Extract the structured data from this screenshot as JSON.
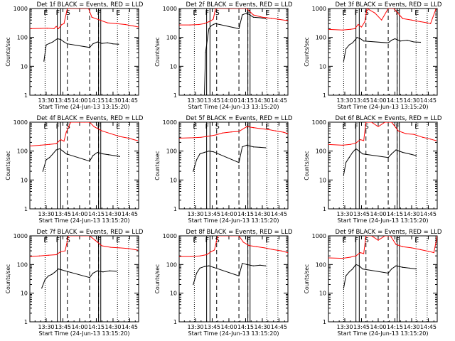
{
  "figure": {
    "ytick_labels": [
      "1",
      "10",
      "100",
      "1000"
    ],
    "xtick_labels": [
      "13:30",
      "13:45",
      "14:00",
      "14:15",
      "14:30",
      "14:45"
    ],
    "colors": {
      "events": "#000000",
      "lld": "#ff0000",
      "frame": "#000000"
    }
  },
  "chart_data": [
    {
      "type": "line",
      "title": "Det 1f BLACK = Events, RED = LLD",
      "xlabel": "Start Time (24-Jun-13 13:15:20)",
      "ylabel": "Counts/sec",
      "ylog": true,
      "ylim": [
        1,
        1000
      ],
      "markers": {
        "solid": [
          "13:40",
          "13:43",
          "14:17",
          "14:19"
        ],
        "dashed": [
          "13:49",
          "14:09",
          "14:17"
        ],
        "dotted": [
          "13:29",
          "14:34",
          "14:44"
        ]
      },
      "flags": [
        "E",
        "F",
        "S",
        "F",
        "E"
      ],
      "series": [
        {
          "name": "Events",
          "x": [
            "13:28",
            "13:30",
            "13:33",
            "13:36",
            "13:38",
            "13:40",
            "13:43",
            "13:46",
            "13:49",
            "14:09",
            "14:12",
            "14:16",
            "14:20",
            "14:25",
            "14:30",
            "14:35"
          ],
          "values": [
            15,
            55,
            62,
            70,
            80,
            90,
            85,
            70,
            60,
            45,
            60,
            70,
            62,
            65,
            60,
            58
          ]
        },
        {
          "name": "LLD",
          "x": [
            "13:15",
            "13:25",
            "13:31",
            "13:37",
            "13:39",
            "13:41",
            "13:44",
            "13:46",
            "13:49",
            "13:52",
            "14:02",
            "14:08",
            "14:11",
            "14:18",
            "14:25",
            "14:33",
            "14:41",
            "14:48",
            "14:53"
          ],
          "values": [
            200,
            205,
            210,
            200,
            240,
            200,
            280,
            300,
            1000,
            1000,
            1000,
            1000,
            500,
            400,
            320,
            300,
            280,
            250,
            230
          ]
        }
      ]
    },
    {
      "type": "line",
      "title": "Det 2f BLACK = Events, RED = LLD",
      "xlabel": "Start Time (24-Jun-13 13:15:20)",
      "ylabel": "Counts/sec",
      "ylog": true,
      "ylim": [
        1,
        1000
      ],
      "markers": {
        "solid": [
          "13:40",
          "13:43",
          "14:17",
          "14:19"
        ],
        "dashed": [
          "13:49",
          "14:09",
          "14:17"
        ],
        "dotted": [
          "13:29",
          "14:34",
          "14:44"
        ]
      },
      "flags": [
        "E",
        "F",
        "S",
        "F",
        "E"
      ],
      "series": [
        {
          "name": "Events",
          "x": [
            "13:38",
            "13:39",
            "13:42",
            "13:44",
            "13:46",
            "13:48",
            "14:09",
            "14:12",
            "14:16",
            "14:22",
            "14:28",
            "14:33"
          ],
          "values": [
            1,
            30,
            200,
            250,
            280,
            300,
            200,
            600,
            700,
            500,
            480,
            450
          ]
        },
        {
          "name": "LLD",
          "x": [
            "13:15",
            "13:25",
            "13:33",
            "13:38",
            "13:42",
            "13:44",
            "13:46",
            "13:48",
            "13:52",
            "14:02",
            "14:10",
            "14:16",
            "14:22",
            "14:30",
            "14:38",
            "14:45",
            "14:53"
          ],
          "values": [
            270,
            270,
            280,
            300,
            350,
            380,
            430,
            1000,
            1000,
            1000,
            1000,
            1000,
            600,
            500,
            460,
            420,
            380
          ]
        }
      ]
    },
    {
      "type": "line",
      "title": "Det 3f BLACK = Events, RED = LLD",
      "xlabel": "Start Time (24-Jun-13 13:15:20)",
      "ylabel": "Counts/sec",
      "ylog": true,
      "ylim": [
        1,
        1000
      ],
      "markers": {
        "solid": [
          "13:40",
          "13:43",
          "14:17",
          "14:19"
        ],
        "dashed": [
          "13:49",
          "14:09",
          "14:17"
        ],
        "dotted": [
          "13:29",
          "14:34",
          "14:44"
        ]
      },
      "flags": [
        "E",
        "F",
        "S",
        "F",
        "E"
      ],
      "series": [
        {
          "name": "Events",
          "x": [
            "13:29",
            "13:31",
            "13:34",
            "13:37",
            "13:39",
            "13:41",
            "13:44",
            "13:47",
            "14:09",
            "14:12",
            "14:15",
            "14:20",
            "14:26",
            "14:32",
            "14:38"
          ],
          "values": [
            15,
            40,
            55,
            65,
            80,
            100,
            90,
            75,
            65,
            80,
            90,
            75,
            80,
            70,
            68
          ]
        },
        {
          "name": "LLD",
          "x": [
            "13:15",
            "13:28",
            "13:35",
            "13:39",
            "13:42",
            "13:45",
            "13:48",
            "13:50",
            "13:57",
            "14:03",
            "14:09",
            "14:14",
            "14:22",
            "14:30",
            "14:38",
            "14:44",
            "14:47",
            "14:52"
          ],
          "values": [
            190,
            180,
            190,
            200,
            280,
            230,
            350,
            1000,
            700,
            400,
            1000,
            1000,
            450,
            400,
            350,
            320,
            300,
            1000
          ]
        }
      ]
    },
    {
      "type": "line",
      "title": "Det 4f BLACK = Events, RED = LLD",
      "xlabel": "Start Time (24-Jun-13 13:15:20)",
      "ylabel": "Counts/sec",
      "ylog": true,
      "ylim": [
        1,
        1000
      ],
      "markers": {
        "solid": [
          "13:40",
          "13:43",
          "14:17",
          "14:19"
        ],
        "dashed": [
          "13:49",
          "14:09",
          "14:17"
        ],
        "dotted": [
          "13:29",
          "14:34",
          "14:44"
        ]
      },
      "flags": [
        "E",
        "F",
        "S",
        "F",
        "E"
      ],
      "series": [
        {
          "name": "Events",
          "x": [
            "13:27",
            "13:30",
            "13:33",
            "13:36",
            "13:39",
            "13:42",
            "13:45",
            "13:48",
            "14:09",
            "14:12",
            "14:16",
            "14:21",
            "14:26",
            "14:31",
            "14:36"
          ],
          "values": [
            20,
            50,
            60,
            80,
            110,
            120,
            100,
            80,
            45,
            70,
            90,
            80,
            75,
            70,
            65
          ]
        },
        {
          "name": "LLD",
          "x": [
            "13:15",
            "13:25",
            "13:33",
            "13:39",
            "13:43",
            "13:46",
            "13:48",
            "13:52",
            "13:58",
            "14:04",
            "14:09",
            "14:13",
            "14:20",
            "14:28",
            "14:36",
            "14:44",
            "14:52"
          ],
          "values": [
            150,
            160,
            170,
            180,
            250,
            220,
            450,
            1000,
            1000,
            1000,
            1000,
            700,
            500,
            400,
            320,
            280,
            230
          ]
        }
      ]
    },
    {
      "type": "line",
      "title": "Det 5f BLACK = Events, RED = LLD",
      "xlabel": "Start Time (24-Jun-13 13:15:20)",
      "ylabel": "Counts/sec",
      "ylog": true,
      "ylim": [
        1,
        1000
      ],
      "markers": {
        "solid": [
          "13:40",
          "13:43",
          "14:17",
          "14:19"
        ],
        "dashed": [
          "13:49",
          "14:09",
          "14:17"
        ],
        "dotted": [
          "13:29",
          "14:34",
          "14:44"
        ]
      },
      "flags": [
        "E",
        "F",
        "S",
        "F",
        "E"
      ],
      "series": [
        {
          "name": "Events",
          "x": [
            "13:28",
            "13:31",
            "13:34",
            "13:38",
            "13:42",
            "13:46",
            "14:09",
            "14:12",
            "14:16",
            "14:22",
            "14:28",
            "14:33"
          ],
          "values": [
            20,
            50,
            80,
            90,
            100,
            95,
            40,
            140,
            160,
            140,
            135,
            130
          ]
        },
        {
          "name": "LLD",
          "x": [
            "13:15",
            "13:28",
            "13:35",
            "13:40",
            "13:44",
            "13:48",
            "13:54",
            "14:02",
            "14:09",
            "14:16",
            "14:22",
            "14:28",
            "14:35",
            "14:42",
            "14:49",
            "14:53"
          ],
          "values": [
            280,
            290,
            300,
            320,
            340,
            360,
            420,
            460,
            480,
            700,
            650,
            600,
            560,
            500,
            450,
            400
          ]
        }
      ]
    },
    {
      "type": "line",
      "title": "Det 6f BLACK = Events, RED = LLD",
      "xlabel": "Start Time (24-Jun-13 13:15:20)",
      "ylabel": "Counts/sec",
      "ylog": true,
      "ylim": [
        1,
        1000
      ],
      "markers": {
        "solid": [
          "13:40",
          "13:43",
          "14:17",
          "14:19"
        ],
        "dashed": [
          "13:49",
          "14:09",
          "14:17"
        ],
        "dotted": [
          "13:29",
          "14:34",
          "14:44"
        ]
      },
      "flags": [
        "E",
        "F",
        "S",
        "F",
        "E"
      ],
      "series": [
        {
          "name": "Events",
          "x": [
            "13:29",
            "13:31",
            "13:34",
            "13:37",
            "13:40",
            "13:43",
            "13:46",
            "14:09",
            "14:12",
            "14:16",
            "14:22",
            "14:28",
            "14:34"
          ],
          "values": [
            15,
            40,
            60,
            90,
            120,
            100,
            80,
            60,
            80,
            110,
            90,
            80,
            70
          ]
        },
        {
          "name": "LLD",
          "x": [
            "13:15",
            "13:28",
            "13:35",
            "13:40",
            "13:44",
            "13:47",
            "13:49",
            "13:54",
            "14:00",
            "14:06",
            "14:12",
            "14:18",
            "14:25",
            "14:32",
            "14:40",
            "14:47",
            "14:52"
          ],
          "values": [
            170,
            160,
            170,
            190,
            250,
            230,
            1000,
            1000,
            700,
            1000,
            1000,
            500,
            400,
            380,
            300,
            260,
            230
          ]
        }
      ]
    },
    {
      "type": "line",
      "title": "Det 7f BLACK = Events, RED = LLD",
      "xlabel": "Start Time (24-Jun-13 13:15:20)",
      "ylabel": "Counts/sec",
      "ylog": true,
      "ylim": [
        1,
        1000
      ],
      "markers": {
        "solid": [
          "13:40",
          "13:43",
          "14:17",
          "14:19"
        ],
        "dashed": [
          "13:49",
          "14:09",
          "14:17"
        ],
        "dotted": [
          "13:29",
          "14:34",
          "14:44"
        ]
      },
      "flags": [
        "E",
        "F",
        "S",
        "F",
        "E"
      ],
      "series": [
        {
          "name": "Events",
          "x": [
            "13:26",
            "13:29",
            "13:32",
            "13:35",
            "13:38",
            "13:41",
            "13:44",
            "13:47",
            "14:09",
            "14:12",
            "14:16",
            "14:21",
            "14:27",
            "14:33"
          ],
          "values": [
            15,
            30,
            40,
            45,
            55,
            70,
            65,
            60,
            35,
            50,
            60,
            55,
            60,
            58
          ]
        },
        {
          "name": "LLD",
          "x": [
            "13:15",
            "13:24",
            "13:32",
            "13:39",
            "13:43",
            "13:47",
            "13:50",
            "13:56",
            "14:03",
            "14:09",
            "14:14",
            "14:20",
            "14:28",
            "14:36",
            "14:44",
            "14:52"
          ],
          "values": [
            190,
            200,
            210,
            220,
            280,
            300,
            1000,
            1000,
            1000,
            1000,
            700,
            450,
            400,
            380,
            360,
            320
          ]
        }
      ]
    },
    {
      "type": "line",
      "title": "Det 8f BLACK = Events, RED = LLD",
      "xlabel": "Start Time (24-Jun-13 13:15:20)",
      "ylabel": "Counts/sec",
      "ylog": true,
      "ylim": [
        1,
        1000
      ],
      "markers": {
        "solid": [
          "13:40",
          "13:43",
          "14:17",
          "14:19"
        ],
        "dashed": [
          "13:49",
          "14:09",
          "14:17"
        ],
        "dotted": [
          "13:29",
          "14:34",
          "14:44"
        ]
      },
      "flags": [
        "E",
        "F",
        "S",
        "F",
        "E"
      ],
      "series": [
        {
          "name": "Events",
          "x": [
            "13:28",
            "13:31",
            "13:34",
            "13:38",
            "13:42",
            "13:46",
            "14:09",
            "14:12",
            "14:16",
            "14:22",
            "14:28",
            "14:33"
          ],
          "values": [
            20,
            50,
            75,
            85,
            90,
            80,
            40,
            110,
            100,
            90,
            95,
            90
          ]
        },
        {
          "name": "LLD",
          "x": [
            "13:15",
            "13:26",
            "13:34",
            "13:40",
            "13:44",
            "13:47",
            "13:50",
            "13:56",
            "14:02",
            "14:09",
            "14:13",
            "14:18",
            "14:25",
            "14:32",
            "14:40",
            "14:47",
            "14:53"
          ],
          "values": [
            190,
            190,
            200,
            220,
            280,
            320,
            1000,
            1000,
            1000,
            1000,
            600,
            460,
            420,
            380,
            330,
            300,
            260
          ]
        }
      ]
    },
    {
      "type": "line",
      "title": "Det 9f BLACK = Events, RED = LLD",
      "xlabel": "Start Time (24-Jun-13 13:15:20)",
      "ylabel": "Counts/sec",
      "ylog": true,
      "ylim": [
        1,
        1000
      ],
      "markers": {
        "solid": [
          "13:40",
          "13:43",
          "14:17",
          "14:19"
        ],
        "dashed": [
          "13:49",
          "14:09",
          "14:17"
        ],
        "dotted": [
          "13:29",
          "14:34",
          "14:44"
        ]
      },
      "flags": [
        "E",
        "F",
        "S",
        "F",
        "E"
      ],
      "series": [
        {
          "name": "Events",
          "x": [
            "13:29",
            "13:31",
            "13:34",
            "13:37",
            "13:40",
            "13:43",
            "13:46",
            "14:09",
            "14:12",
            "14:16",
            "14:22",
            "14:28",
            "14:34"
          ],
          "values": [
            15,
            40,
            55,
            70,
            100,
            90,
            70,
            50,
            70,
            90,
            80,
            75,
            70
          ]
        },
        {
          "name": "LLD",
          "x": [
            "13:15",
            "13:28",
            "13:35",
            "13:40",
            "13:44",
            "13:47",
            "13:49",
            "13:54",
            "14:00",
            "14:06",
            "14:11",
            "14:16",
            "14:22",
            "14:30",
            "14:38",
            "14:45",
            "14:50",
            "14:53"
          ],
          "values": [
            170,
            165,
            180,
            200,
            260,
            240,
            1000,
            1000,
            700,
            1000,
            1000,
            500,
            420,
            380,
            330,
            290,
            260,
            1000
          ]
        }
      ]
    }
  ]
}
